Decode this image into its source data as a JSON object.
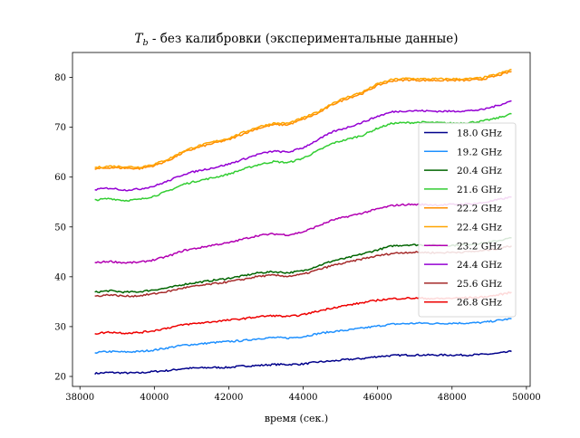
{
  "chart_data": {
    "type": "line",
    "title_main": "T",
    "title_sub": "b",
    "title_rest": " - без калибровки (экспериментальные данные)",
    "xlabel": "время (сек.)",
    "ylabel": "",
    "xlim": [
      37800,
      50100
    ],
    "ylim": [
      18,
      85
    ],
    "xticks": [
      38000,
      40000,
      42000,
      44000,
      46000,
      48000,
      50000
    ],
    "yticks": [
      20,
      30,
      40,
      50,
      60,
      70,
      80
    ],
    "grid": false,
    "legend_position": "center-right",
    "x": [
      38400,
      38800,
      39200,
      39600,
      40000,
      40400,
      40800,
      41200,
      41600,
      42000,
      42400,
      42800,
      43200,
      43600,
      44000,
      44400,
      44800,
      45200,
      45600,
      46000,
      46400,
      46800,
      47200,
      47600,
      48000,
      48400,
      48800,
      49200,
      49600
    ],
    "series": [
      {
        "name": "18.0 GHz",
        "color": "#00008b",
        "values": [
          20.6,
          20.8,
          20.7,
          20.7,
          21.0,
          21.2,
          21.6,
          21.7,
          21.8,
          21.8,
          22.1,
          22.2,
          22.4,
          22.4,
          22.5,
          22.9,
          23.1,
          23.4,
          23.6,
          24.0,
          24.2,
          24.3,
          24.3,
          24.3,
          24.3,
          24.3,
          24.4,
          24.6,
          25.0
        ]
      },
      {
        "name": "19.2 GHz",
        "color": "#1e90ff",
        "values": [
          24.8,
          25.0,
          24.9,
          25.0,
          25.3,
          25.8,
          26.3,
          26.5,
          26.8,
          27.0,
          27.2,
          27.6,
          27.8,
          27.7,
          28.0,
          28.6,
          29.0,
          29.3,
          29.7,
          30.1,
          30.5,
          30.6,
          30.7,
          30.6,
          30.7,
          30.7,
          30.8,
          31.2,
          31.6
        ]
      },
      {
        "name": "20.4 GHz",
        "color": "#006400",
        "values": [
          36.9,
          37.2,
          36.9,
          37.0,
          37.4,
          37.8,
          38.5,
          38.9,
          39.3,
          39.7,
          40.2,
          40.8,
          41.0,
          40.8,
          41.2,
          42.2,
          43.2,
          43.8,
          44.6,
          45.4,
          46.2,
          46.4,
          46.4,
          46.3,
          46.3,
          46.5,
          46.7,
          47.2,
          47.8
        ]
      },
      {
        "name": "21.6 GHz",
        "color": "#32cd32",
        "values": [
          55.4,
          55.7,
          55.3,
          55.5,
          56.2,
          57.3,
          58.6,
          59.3,
          59.9,
          60.6,
          61.6,
          62.5,
          63.1,
          62.9,
          63.8,
          65.3,
          66.8,
          67.6,
          68.4,
          69.8,
          70.8,
          70.9,
          71.0,
          70.9,
          70.8,
          70.9,
          71.2,
          71.8,
          72.7
        ]
      },
      {
        "name": "22.2 GHz",
        "color": "#ff8c00",
        "values": [
          61.6,
          61.9,
          61.8,
          61.7,
          62.3,
          63.4,
          65.0,
          66.0,
          66.8,
          67.5,
          68.7,
          69.8,
          70.5,
          70.5,
          71.6,
          72.8,
          74.6,
          75.8,
          76.8,
          78.4,
          79.3,
          79.5,
          79.4,
          79.4,
          79.4,
          79.4,
          79.6,
          80.3,
          81.2
        ]
      },
      {
        "name": "22.4 GHz",
        "color": "#ffa500",
        "values": [
          61.9,
          62.2,
          62.1,
          62.0,
          62.6,
          63.7,
          65.3,
          66.3,
          67.1,
          67.8,
          69.0,
          70.1,
          70.8,
          70.8,
          71.9,
          73.1,
          74.9,
          76.1,
          77.1,
          78.7,
          79.6,
          79.8,
          79.7,
          79.7,
          79.7,
          79.7,
          79.9,
          80.6,
          81.6
        ]
      },
      {
        "name": "23.2 GHz",
        "color": "#b200b2",
        "values": [
          42.8,
          43.1,
          42.8,
          42.9,
          43.4,
          44.2,
          45.3,
          45.8,
          46.4,
          46.8,
          47.6,
          48.3,
          48.6,
          48.4,
          49.0,
          50.2,
          51.4,
          52.1,
          52.8,
          53.6,
          54.3,
          54.5,
          54.5,
          54.4,
          54.5,
          54.6,
          54.8,
          55.4,
          56.0
        ]
      },
      {
        "name": "24.4 GHz",
        "color": "#9400d3",
        "values": [
          57.5,
          57.8,
          57.4,
          57.6,
          58.2,
          59.3,
          60.6,
          61.3,
          61.9,
          62.6,
          63.6,
          64.6,
          65.2,
          65.0,
          65.9,
          67.5,
          69.1,
          70.0,
          71.0,
          72.2,
          73.1,
          73.3,
          73.3,
          73.2,
          73.2,
          73.3,
          73.5,
          74.3,
          75.3
        ]
      },
      {
        "name": "25.6 GHz",
        "color": "#a52a2a",
        "values": [
          36.1,
          36.4,
          36.1,
          36.2,
          36.6,
          37.1,
          37.8,
          38.2,
          38.6,
          39.0,
          39.5,
          40.1,
          40.3,
          40.1,
          40.5,
          41.4,
          42.3,
          42.9,
          43.6,
          44.2,
          44.7,
          44.9,
          44.9,
          44.8,
          44.9,
          45.0,
          45.2,
          45.6,
          46.2
        ]
      },
      {
        "name": "26.8 GHz",
        "color": "#ee0000",
        "values": [
          28.6,
          28.9,
          28.7,
          28.8,
          29.2,
          29.8,
          30.4,
          30.7,
          31.0,
          31.3,
          31.6,
          32.0,
          32.2,
          32.0,
          32.4,
          33.1,
          33.8,
          34.3,
          34.8,
          35.3,
          35.6,
          35.7,
          35.7,
          35.6,
          35.7,
          35.8,
          35.9,
          36.3,
          36.9
        ]
      }
    ]
  }
}
